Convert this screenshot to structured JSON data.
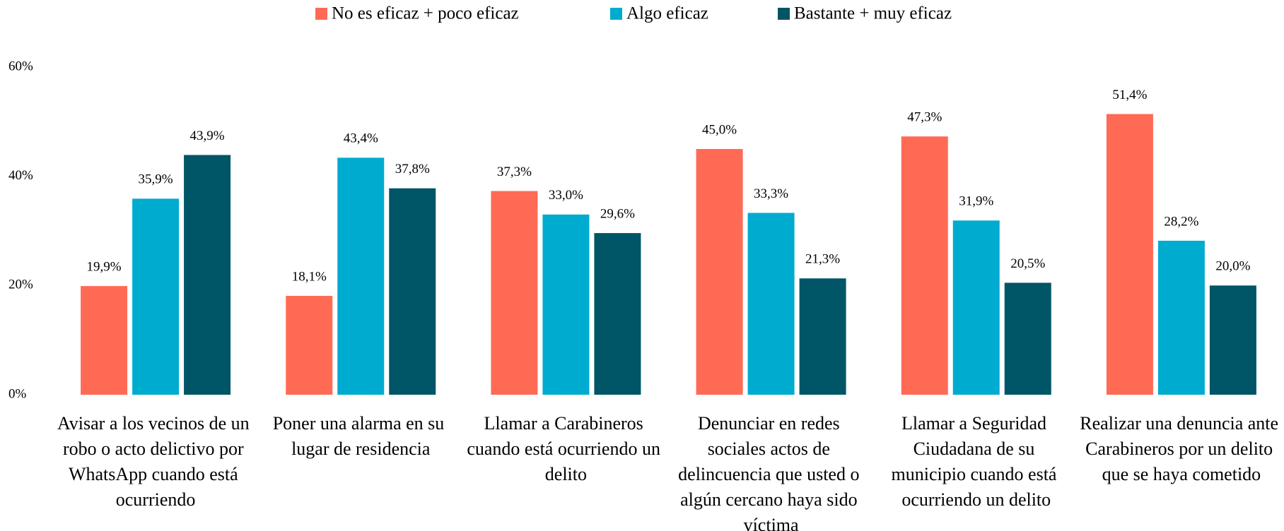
{
  "chart_data": {
    "type": "bar",
    "categories": [
      "Avisar a los vecinos de un robo o acto delictivo por WhatsApp cuando está ocurriendo",
      "Poner una alarma en su lugar de residencia",
      "Llamar a Carabineros cuando está ocurriendo un delito",
      "Denunciar en redes sociales actos de delincuencia que usted o algún cercano haya sido víctima",
      "Llamar a Seguridad Ciudadana de su municipio cuando está ocurriendo un delito",
      "Realizar una denuncia ante Carabineros por un delito que se haya cometido"
    ],
    "series": [
      {
        "name": "No es eficaz + poco eficaz",
        "color": "#ff6a55",
        "values": [
          19.9,
          18.1,
          37.3,
          45.0,
          47.3,
          51.4
        ],
        "value_labels": [
          "19,9%",
          "18,1%",
          "37,3%",
          "45,0%",
          "47,3%",
          "51,4%"
        ]
      },
      {
        "name": "Algo eficaz",
        "color": "#00abd0",
        "values": [
          35.9,
          43.4,
          33.0,
          33.3,
          31.9,
          28.2
        ],
        "value_labels": [
          "35,9%",
          "43,4%",
          "33,0%",
          "33,3%",
          "31,9%",
          "28,2%"
        ]
      },
      {
        "name": "Bastante + muy eficaz",
        "color": "#005566",
        "values": [
          43.9,
          37.8,
          29.6,
          21.3,
          20.5,
          20.0
        ],
        "value_labels": [
          "43,9%",
          "37,8%",
          "29,6%",
          "21,3%",
          "20,5%",
          "20,0%"
        ]
      }
    ],
    "ylim": [
      0,
      60
    ],
    "yticks": [
      {
        "value": 0,
        "label": "0%"
      },
      {
        "value": 20,
        "label": "20%"
      },
      {
        "value": 40,
        "label": "40%"
      },
      {
        "value": 60,
        "label": "60%"
      }
    ],
    "grid": false,
    "legend": "top"
  }
}
